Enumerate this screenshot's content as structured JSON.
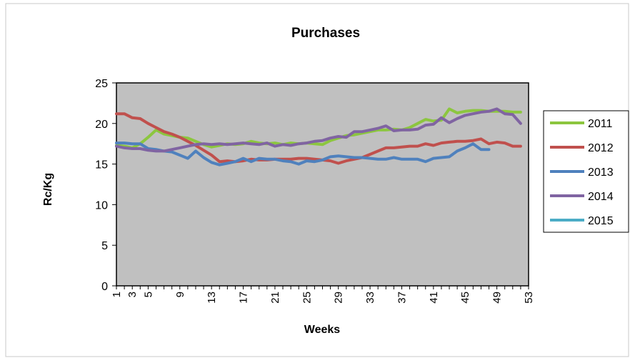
{
  "chart_data": {
    "type": "line",
    "title": "Purchases",
    "xlabel": "Weeks",
    "ylabel": "Rc/Kg",
    "ylim": [
      0,
      25
    ],
    "xlim": [
      1,
      53
    ],
    "yticks": [
      0,
      5,
      10,
      15,
      20,
      25
    ],
    "xticks": [
      1,
      3,
      5,
      9,
      13,
      17,
      21,
      25,
      29,
      33,
      37,
      41,
      45,
      49,
      53
    ],
    "grid": false,
    "legend_position": "right",
    "plot_background": "#c0c0c0",
    "series": [
      {
        "name": "2011",
        "color": "#8cc63f",
        "x": [
          1,
          2,
          3,
          4,
          5,
          6,
          7,
          8,
          9,
          10,
          11,
          12,
          13,
          14,
          15,
          16,
          17,
          18,
          19,
          20,
          21,
          22,
          23,
          24,
          25,
          26,
          27,
          28,
          29,
          30,
          31,
          32,
          33,
          34,
          35,
          36,
          37,
          38,
          39,
          40,
          41,
          42,
          43,
          44,
          45,
          46,
          47,
          48,
          49,
          50,
          51,
          52
        ],
        "y": [
          17.3,
          17.2,
          17.0,
          17.5,
          18.3,
          19.2,
          18.7,
          18.5,
          18.3,
          18.2,
          17.8,
          17.4,
          17.1,
          17.3,
          17.5,
          17.4,
          17.5,
          17.8,
          17.6,
          17.5,
          17.6,
          17.4,
          17.6,
          17.5,
          17.6,
          17.5,
          17.4,
          17.9,
          18.2,
          18.5,
          18.6,
          18.8,
          19.0,
          19.2,
          19.2,
          19.3,
          19.2,
          19.5,
          20.0,
          20.5,
          20.3,
          20.4,
          21.8,
          21.3,
          21.5,
          21.6,
          21.6,
          21.5,
          21.5,
          21.5,
          21.4,
          21.4
        ]
      },
      {
        "name": "2012",
        "color": "#c0504d",
        "x": [
          1,
          2,
          3,
          4,
          5,
          6,
          7,
          8,
          9,
          10,
          11,
          12,
          13,
          14,
          15,
          16,
          17,
          18,
          19,
          20,
          21,
          22,
          23,
          24,
          25,
          26,
          27,
          28,
          29,
          30,
          31,
          32,
          33,
          34,
          35,
          36,
          37,
          38,
          39,
          40,
          41,
          42,
          43,
          44,
          45,
          46,
          47,
          48,
          49,
          50,
          51,
          52
        ],
        "y": [
          21.2,
          21.2,
          20.7,
          20.6,
          20.0,
          19.5,
          19.0,
          18.7,
          18.3,
          17.8,
          17.3,
          16.7,
          16.1,
          15.3,
          15.4,
          15.3,
          15.4,
          15.6,
          15.5,
          15.5,
          15.6,
          15.6,
          15.6,
          15.7,
          15.7,
          15.6,
          15.5,
          15.4,
          15.1,
          15.4,
          15.6,
          15.8,
          16.2,
          16.6,
          17.0,
          17.0,
          17.1,
          17.2,
          17.2,
          17.5,
          17.3,
          17.6,
          17.7,
          17.8,
          17.8,
          17.9,
          18.1,
          17.5,
          17.7,
          17.6,
          17.2,
          17.2
        ]
      },
      {
        "name": "2013",
        "color": "#4f81bd",
        "x": [
          1,
          2,
          3,
          4,
          5,
          6,
          7,
          8,
          9,
          10,
          11,
          12,
          13,
          14,
          15,
          16,
          17,
          18,
          19,
          20,
          21,
          22,
          23,
          24,
          25,
          26,
          27,
          28,
          29,
          30,
          31,
          32,
          33,
          34,
          35,
          36,
          37,
          38,
          39,
          40,
          41,
          42,
          43,
          44,
          45,
          46,
          47,
          48
        ],
        "y": [
          17.6,
          17.6,
          17.5,
          17.5,
          16.9,
          16.8,
          16.6,
          16.5,
          16.1,
          15.7,
          16.6,
          15.8,
          15.2,
          14.9,
          15.1,
          15.3,
          15.7,
          15.3,
          15.7,
          15.6,
          15.6,
          15.4,
          15.3,
          15.0,
          15.4,
          15.3,
          15.5,
          15.9,
          16.0,
          15.9,
          15.8,
          15.8,
          15.7,
          15.6,
          15.6,
          15.8,
          15.6,
          15.6,
          15.6,
          15.3,
          15.7,
          15.8,
          15.9,
          16.6,
          17.0,
          17.5,
          16.8,
          16.8
        ]
      },
      {
        "name": "2014",
        "color": "#8064a2",
        "x": [
          1,
          2,
          3,
          4,
          5,
          6,
          7,
          8,
          9,
          10,
          11,
          12,
          13,
          14,
          15,
          16,
          17,
          18,
          19,
          20,
          21,
          22,
          23,
          24,
          25,
          26,
          27,
          28,
          29,
          30,
          31,
          32,
          33,
          34,
          35,
          36,
          37,
          38,
          39,
          40,
          41,
          42,
          43,
          44,
          45,
          46,
          47,
          48,
          49,
          50,
          51,
          52
        ],
        "y": [
          17.2,
          17.0,
          16.9,
          16.9,
          16.7,
          16.6,
          16.6,
          16.8,
          17.0,
          17.2,
          17.4,
          17.5,
          17.4,
          17.5,
          17.4,
          17.5,
          17.6,
          17.5,
          17.4,
          17.6,
          17.2,
          17.4,
          17.3,
          17.5,
          17.6,
          17.8,
          17.9,
          18.2,
          18.4,
          18.3,
          19.0,
          19.0,
          19.2,
          19.4,
          19.7,
          19.1,
          19.2,
          19.2,
          19.3,
          19.8,
          19.9,
          20.7,
          20.1,
          20.6,
          21.0,
          21.2,
          21.4,
          21.5,
          21.8,
          21.2,
          21.1,
          20.0
        ]
      },
      {
        "name": "2015",
        "color": "#4bacc6",
        "x": [],
        "y": []
      }
    ]
  }
}
